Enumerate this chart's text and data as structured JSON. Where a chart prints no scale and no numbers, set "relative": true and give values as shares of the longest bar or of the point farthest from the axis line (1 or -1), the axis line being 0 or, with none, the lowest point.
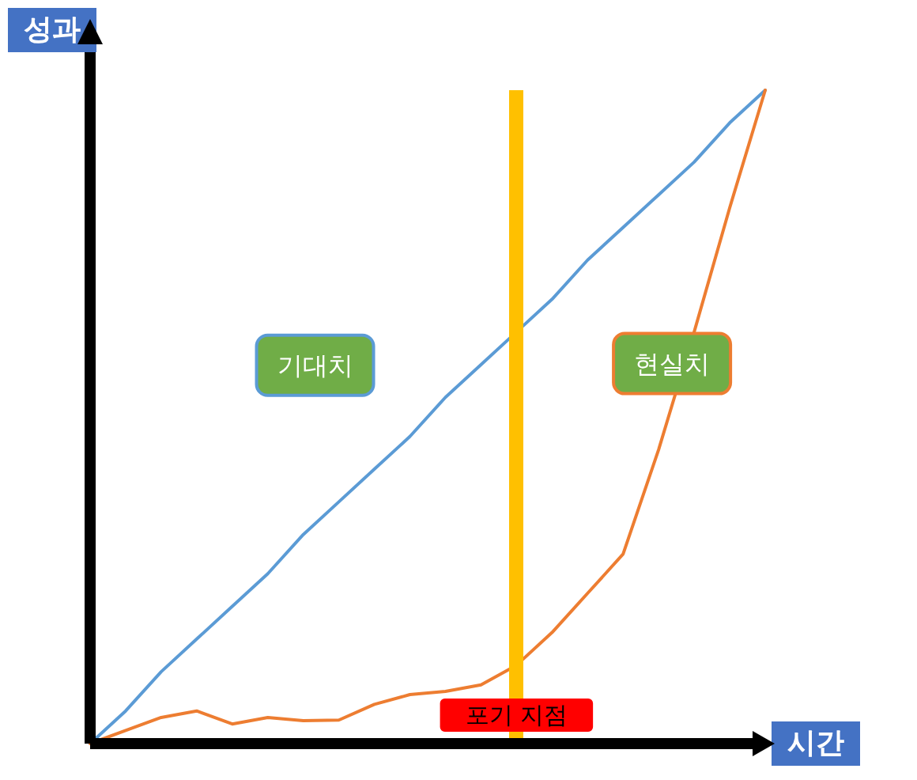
{
  "chart_data": {
    "type": "line",
    "relative": true,
    "xlabel": "시간",
    "ylabel": "성과",
    "categories": [
      null,
      null,
      null,
      null,
      null,
      null,
      null,
      null,
      null,
      null,
      null,
      null,
      null,
      null,
      null,
      null,
      null,
      null,
      null,
      null
    ],
    "annotations": [
      "포기 지점"
    ],
    "grid": false,
    "legend": false,
    "marker": "none",
    "line_style": "solid",
    "series": [
      {
        "name": "기대치",
        "color": "#5b9bd5",
        "values": [
          0,
          0.05,
          0.11,
          0.16,
          0.21,
          0.26,
          0.32,
          0.37,
          0.42,
          0.47,
          0.53,
          0.58,
          0.63,
          0.68,
          0.74,
          0.79,
          0.84,
          0.89,
          0.95,
          1
        ]
      },
      {
        "name": "현실치",
        "color": "#ed7d31",
        "values": [
          0,
          0.02,
          0.04,
          0.05,
          0.03,
          0.04,
          0.035,
          0.036,
          0.06,
          0.075,
          0.08,
          0.09,
          0.12,
          0.17,
          0.23,
          0.29,
          0.45,
          0.63,
          0.82,
          1
        ]
      }
    ]
  }
}
